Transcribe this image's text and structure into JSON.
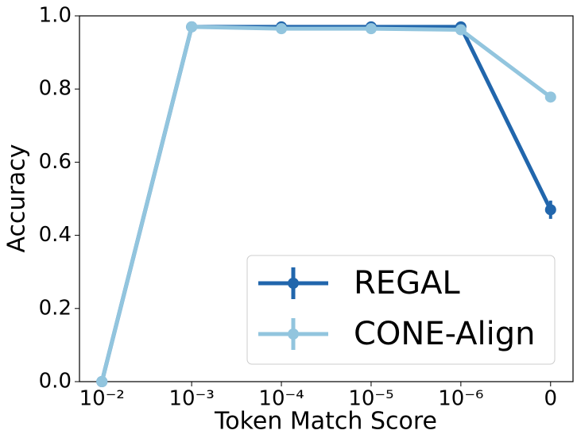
{
  "chart_data": {
    "type": "line",
    "x_label": "Token Match Score",
    "y_label": "Accuracy",
    "categories": [
      "10⁻²",
      "10⁻³",
      "10⁻⁴",
      "10⁻⁵",
      "10⁻⁶",
      "0"
    ],
    "series": [
      {
        "name": "REGAL",
        "color": "#2166ac",
        "values": [
          0,
          0.97,
          0.97,
          0.97,
          0.97,
          0.47
        ],
        "errors": [
          0,
          0.005,
          0.005,
          0.005,
          0.005,
          0.025
        ]
      },
      {
        "name": "CONE-Align",
        "color": "#92c5de",
        "values": [
          0,
          0.97,
          0.965,
          0.965,
          0.962,
          0.778
        ],
        "errors": [
          0,
          0.005,
          0.005,
          0.005,
          0.005,
          0.012
        ]
      }
    ],
    "ylim": [
      0,
      1
    ],
    "yticks": [
      {
        "value": 0,
        "label": "0.0"
      },
      0.2,
      0.4,
      0.6,
      0.8,
      {
        "value": 1,
        "label": "1.0"
      }
    ],
    "legend": "lower right"
  }
}
